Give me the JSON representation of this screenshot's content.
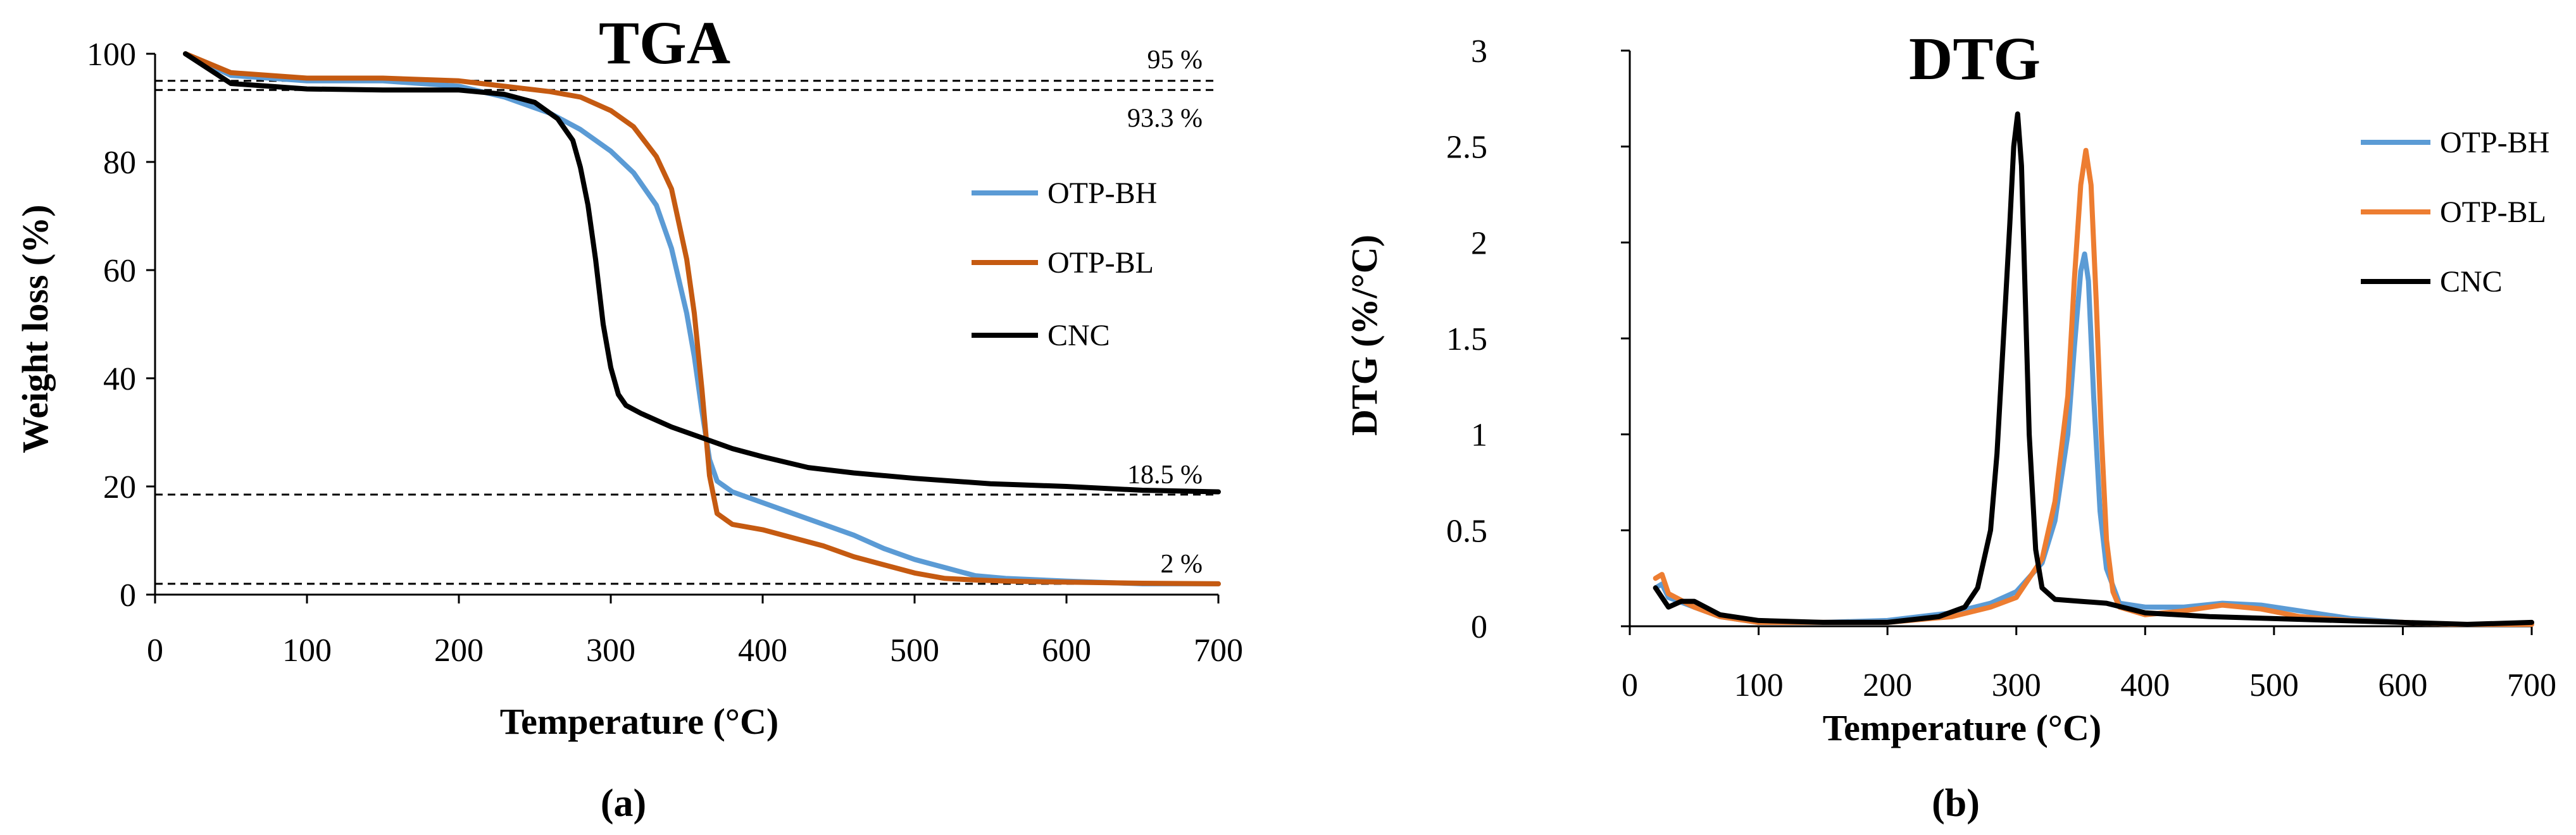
{
  "chart_data": [
    {
      "type": "line",
      "title": "TGA",
      "caption": "(a)",
      "xlabel": "Temperature (°C)",
      "ylabel": "Weight loss (%)",
      "xlim": [
        0,
        700
      ],
      "ylim": [
        0,
        100
      ],
      "xticks": [
        "0",
        "100",
        "200",
        "300",
        "400",
        "500",
        "600",
        "700"
      ],
      "yticks": [
        "0",
        "20",
        "40",
        "60",
        "80",
        "100"
      ],
      "grid": false,
      "legend_position": "right",
      "series": [
        {
          "name": "OTP-BH",
          "color": "#5B9BD5",
          "x": [
            20,
            50,
            100,
            150,
            200,
            230,
            260,
            280,
            300,
            315,
            330,
            340,
            350,
            355,
            360,
            365,
            370,
            380,
            400,
            420,
            440,
            460,
            480,
            500,
            520,
            540,
            560,
            600,
            650,
            700
          ],
          "y": [
            100,
            96,
            95,
            95,
            94,
            92,
            89,
            86,
            82,
            78,
            72,
            64,
            52,
            44,
            34,
            25,
            21,
            19,
            17,
            15,
            13,
            11,
            8.5,
            6.5,
            5,
            3.5,
            3,
            2.5,
            2,
            2
          ]
        },
        {
          "name": "OTP-BL",
          "color": "#C55A11",
          "x": [
            20,
            50,
            100,
            150,
            200,
            230,
            260,
            280,
            300,
            315,
            330,
            340,
            350,
            355,
            360,
            365,
            370,
            380,
            400,
            420,
            440,
            460,
            480,
            500,
            520,
            540,
            560,
            600,
            650,
            700
          ],
          "y": [
            100,
            96.5,
            95.5,
            95.5,
            95,
            94,
            93,
            92,
            89.5,
            86.5,
            81,
            75,
            62,
            52,
            38,
            22,
            15,
            13,
            12,
            10.5,
            9,
            7,
            5.5,
            4,
            3,
            2.7,
            2.5,
            2.3,
            2.1,
            2
          ]
        },
        {
          "name": "CNC",
          "color": "#000000",
          "x": [
            20,
            50,
            100,
            150,
            200,
            230,
            250,
            265,
            275,
            280,
            285,
            290,
            295,
            300,
            305,
            310,
            320,
            340,
            360,
            380,
            400,
            430,
            460,
            500,
            550,
            600,
            650,
            700
          ],
          "y": [
            100,
            94.5,
            93.5,
            93.3,
            93.3,
            92.5,
            91,
            88,
            84,
            79,
            72,
            62,
            50,
            42,
            37,
            35,
            33.5,
            31,
            29,
            27,
            25.5,
            23.5,
            22.5,
            21.5,
            20.5,
            20,
            19.3,
            19
          ]
        }
      ],
      "reference_lines": [
        {
          "y": 95,
          "label": "95 %"
        },
        {
          "y": 93.3,
          "label": "93.3 %"
        },
        {
          "y": 18.5,
          "label": "18.5 %"
        },
        {
          "y": 2,
          "label": "2 %"
        }
      ]
    },
    {
      "type": "line",
      "title": "DTG",
      "caption": "(b)",
      "xlabel": "Temperature (°C)",
      "ylabel": "DTG (%/°C)",
      "xlim": [
        0,
        700
      ],
      "ylim": [
        0,
        3
      ],
      "xticks": [
        "0",
        "100",
        "200",
        "300",
        "400",
        "500",
        "600",
        "700"
      ],
      "yticks": [
        "0",
        "0.5",
        "1",
        "1.5",
        "2",
        "2.5",
        "3"
      ],
      "grid": false,
      "legend_position": "top-right",
      "series": [
        {
          "name": "OTP-BH",
          "color": "#5B9BD5",
          "x": [
            20,
            25,
            30,
            50,
            70,
            100,
            150,
            200,
            250,
            280,
            300,
            320,
            330,
            340,
            345,
            350,
            353,
            356,
            360,
            365,
            370,
            380,
            400,
            430,
            460,
            490,
            520,
            560,
            600,
            640,
            700
          ],
          "y": [
            0.2,
            0.22,
            0.15,
            0.1,
            0.05,
            0.02,
            0.02,
            0.03,
            0.07,
            0.12,
            0.18,
            0.33,
            0.55,
            1.0,
            1.45,
            1.85,
            1.94,
            1.8,
            1.2,
            0.6,
            0.3,
            0.12,
            0.1,
            0.1,
            0.12,
            0.11,
            0.08,
            0.04,
            0.02,
            0.01,
            0.01
          ]
        },
        {
          "name": "OTP-BL",
          "color": "#ED7D31",
          "x": [
            20,
            25,
            30,
            50,
            70,
            100,
            150,
            200,
            250,
            280,
            300,
            320,
            330,
            340,
            345,
            350,
            354,
            358,
            362,
            366,
            370,
            375,
            380,
            400,
            430,
            460,
            490,
            520,
            560,
            600,
            640,
            700
          ],
          "y": [
            0.25,
            0.27,
            0.17,
            0.1,
            0.05,
            0.02,
            0.02,
            0.02,
            0.05,
            0.1,
            0.15,
            0.35,
            0.65,
            1.2,
            1.8,
            2.3,
            2.48,
            2.3,
            1.7,
            1.0,
            0.45,
            0.18,
            0.1,
            0.06,
            0.08,
            0.11,
            0.09,
            0.05,
            0.03,
            0.02,
            0.01,
            0.01
          ]
        },
        {
          "name": "CNC",
          "color": "#000000",
          "x": [
            20,
            30,
            40,
            50,
            70,
            100,
            150,
            200,
            240,
            260,
            270,
            280,
            285,
            290,
            295,
            298,
            301,
            304,
            307,
            310,
            315,
            320,
            330,
            350,
            370,
            400,
            450,
            500,
            550,
            600,
            650,
            700
          ],
          "y": [
            0.2,
            0.1,
            0.13,
            0.13,
            0.06,
            0.03,
            0.02,
            0.02,
            0.05,
            0.1,
            0.2,
            0.5,
            0.9,
            1.5,
            2.1,
            2.5,
            2.67,
            2.4,
            1.7,
            1.0,
            0.4,
            0.2,
            0.14,
            0.13,
            0.12,
            0.07,
            0.05,
            0.04,
            0.03,
            0.02,
            0.01,
            0.02
          ]
        }
      ]
    }
  ]
}
